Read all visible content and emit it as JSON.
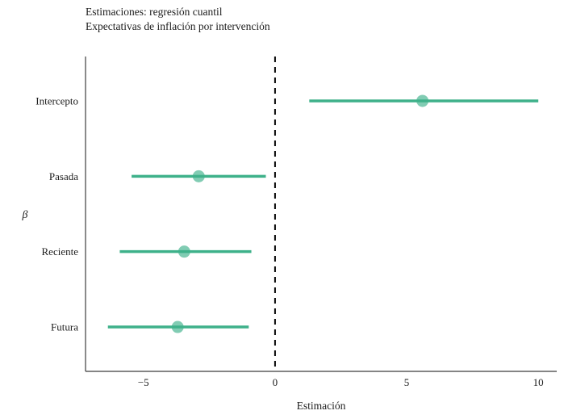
{
  "chart_data": {
    "type": "scatter",
    "variant": "coefficient-dot-whisker",
    "title": "Estimaciones: regresión cuantil",
    "subtitle": "Expectativas de inflación por intervención",
    "xlabel": "Estimación",
    "ylabel": "β",
    "categories": [
      "Intercepto",
      "Pasada",
      "Reciente",
      "Futura"
    ],
    "series": [
      {
        "name": "estimates",
        "estimate": [
          5.6,
          -2.9,
          -3.45,
          -3.7
        ],
        "ci_low": [
          1.3,
          -5.45,
          -5.9,
          -6.35
        ],
        "ci_high": [
          10.0,
          -0.35,
          -0.9,
          -1.0
        ]
      }
    ],
    "x_ticks": [
      -5,
      0,
      5,
      10
    ],
    "xlim": [
      -7.2,
      10.7
    ],
    "reference_line": {
      "x": 0,
      "style": "dashed",
      "color": "#000000"
    },
    "point_color": "#3eb18a",
    "axis_color": "#3c3c3c",
    "text_color": "#1c1c1c",
    "grid": false,
    "legend": false
  }
}
